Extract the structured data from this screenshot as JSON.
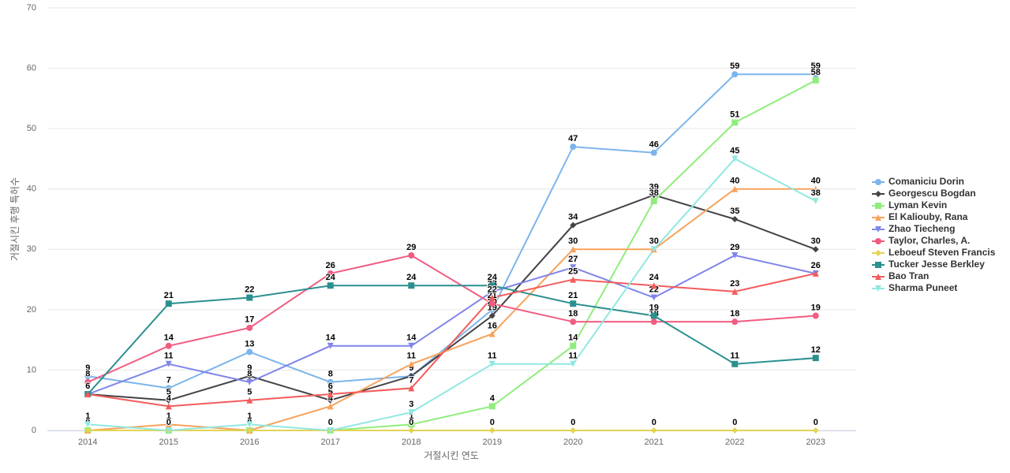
{
  "chart_data": {
    "type": "line",
    "x_label": "거절시킨 연도",
    "y_label": "거절시킨 후행 특허수",
    "categories": [
      "2014",
      "2015",
      "2016",
      "2017",
      "2018",
      "2019",
      "2020",
      "2021",
      "2022",
      "2023"
    ],
    "ylim": [
      0,
      70
    ],
    "yticks": [
      0,
      10,
      20,
      30,
      40,
      50,
      60,
      70
    ],
    "grid": true,
    "legend": "right",
    "series": [
      {
        "name": "Comaniciu Dorin",
        "color": "#7cb5ec",
        "marker": "circle",
        "values": [
          9,
          7,
          13,
          8,
          9,
          20,
          47,
          46,
          59,
          59
        ]
      },
      {
        "name": "Georgescu Bogdan",
        "color": "#434348",
        "marker": "diamond",
        "values": [
          6,
          5,
          9,
          5,
          9,
          19,
          34,
          39,
          35,
          30
        ]
      },
      {
        "name": "Lyman Kevin",
        "color": "#90ed7d",
        "marker": "square",
        "values": [
          0,
          0,
          0,
          0,
          1,
          4,
          14,
          38,
          51,
          58
        ]
      },
      {
        "name": "El Kaliouby, Rana",
        "color": "#f7a35c",
        "marker": "triangle",
        "values": [
          0,
          1,
          0,
          4,
          11,
          16,
          30,
          30,
          40,
          40
        ]
      },
      {
        "name": "Zhao Tiecheng",
        "color": "#8085e9",
        "marker": "triangle-down",
        "values": [
          6,
          11,
          8,
          14,
          14,
          23,
          27,
          22,
          29,
          26
        ]
      },
      {
        "name": "Taylor, Charles, A.",
        "color": "#f15c80",
        "marker": "circle",
        "values": [
          8,
          14,
          17,
          26,
          29,
          21,
          18,
          18,
          18,
          19
        ]
      },
      {
        "name": "Leboeuf Steven Francis",
        "color": "#e4d354",
        "marker": "diamond",
        "values": [
          0,
          0,
          0,
          0,
          0,
          0,
          0,
          0,
          0,
          0
        ]
      },
      {
        "name": "Tucker Jesse Berkley",
        "color": "#2b908f",
        "marker": "square",
        "values": [
          6,
          21,
          22,
          24,
          24,
          24,
          21,
          19,
          11,
          12
        ]
      },
      {
        "name": "Bao Tran",
        "color": "#f45b5b",
        "marker": "triangle",
        "values": [
          6,
          4,
          5,
          6,
          7,
          22,
          25,
          24,
          23,
          26
        ]
      },
      {
        "name": "Sharma Puneet",
        "color": "#91e8e1",
        "marker": "triangle-down",
        "values": [
          1,
          0,
          1,
          0,
          3,
          11,
          11,
          30,
          45,
          38
        ]
      }
    ]
  }
}
